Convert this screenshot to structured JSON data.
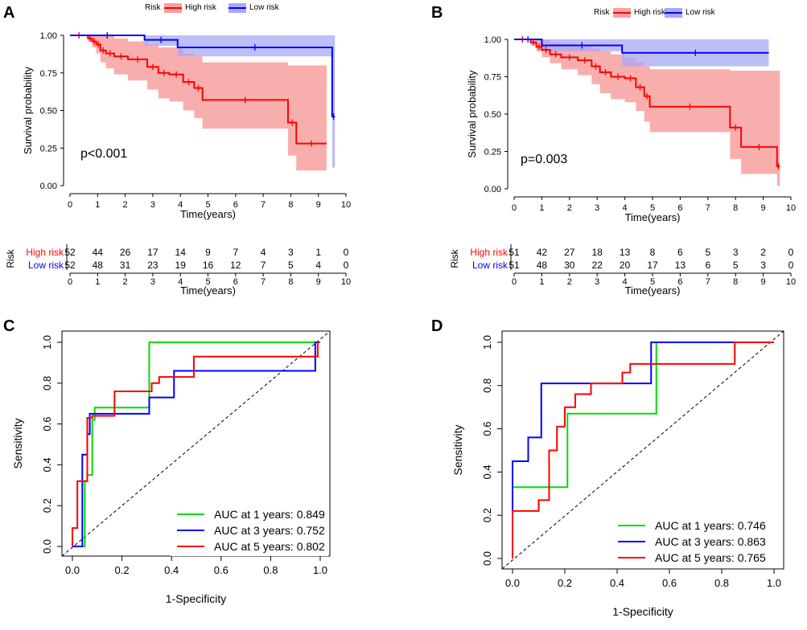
{
  "colors": {
    "high": "#ff0000",
    "low": "#0000ff",
    "high_fill": "#f8a0a0",
    "low_fill": "#a8a8f4",
    "green": "#00dd00",
    "axis": "#000000"
  },
  "panels": {
    "A": {
      "letter": "A",
      "pvalue": "p<0.001"
    },
    "B": {
      "letter": "B",
      "pvalue": "p=0.003"
    },
    "C": {
      "letter": "C"
    },
    "D": {
      "letter": "D"
    }
  },
  "km_common": {
    "legend_title": "Risk",
    "legend_high": "High risk",
    "legend_low": "Low risk",
    "xlabel": "Time(years)",
    "ylabel": "Survival probability",
    "risk_table_title": "Risk",
    "row_high": "High risk",
    "row_low": "Low risk",
    "xticks": [
      "0",
      "1",
      "2",
      "3",
      "4",
      "5",
      "6",
      "7",
      "8",
      "9",
      "10"
    ],
    "yticks": [
      "0.00",
      "0.25",
      "0.50",
      "0.75",
      "1.00"
    ]
  },
  "roc_common": {
    "xlabel": "1-Specificity",
    "ylabel": "Sensitivity",
    "xticks": [
      "0.0",
      "0.2",
      "0.4",
      "0.6",
      "0.8",
      "1.0"
    ],
    "yticks": [
      "0.0",
      "0.2",
      "0.4",
      "0.6",
      "0.8",
      "1.0"
    ]
  },
  "chart_data": [
    {
      "panel": "A",
      "type": "line",
      "subtype": "kaplan-meier",
      "title": "",
      "xlabel": "Time(years)",
      "ylabel": "Survival probability",
      "xlim": [
        0,
        10
      ],
      "ylim": [
        0,
        1
      ],
      "pvalue": "p<0.001",
      "series": [
        {
          "name": "High risk",
          "x": [
            0,
            0.65,
            0.8,
            0.95,
            1.1,
            1.3,
            1.6,
            2.1,
            2.8,
            3.2,
            3.6,
            4.1,
            4.5,
            4.8,
            7.9,
            8.2,
            9.3
          ],
          "y": [
            1.0,
            0.98,
            0.96,
            0.94,
            0.9,
            0.88,
            0.86,
            0.84,
            0.79,
            0.75,
            0.74,
            0.69,
            0.65,
            0.57,
            0.42,
            0.28,
            0.28
          ],
          "lower": [
            1.0,
            0.96,
            0.92,
            0.88,
            0.82,
            0.78,
            0.74,
            0.7,
            0.64,
            0.58,
            0.56,
            0.5,
            0.45,
            0.38,
            0.2,
            0.1,
            0.1
          ],
          "upper": [
            1.0,
            1.0,
            1.0,
            1.0,
            1.0,
            1.0,
            0.98,
            0.96,
            0.94,
            0.92,
            0.92,
            0.88,
            0.86,
            0.82,
            0.8,
            0.8,
            0.8
          ]
        },
        {
          "name": "Low risk",
          "x": [
            0,
            2.7,
            3.9,
            9.5,
            9.6
          ],
          "y": [
            1.0,
            0.97,
            0.92,
            0.46,
            0.46
          ],
          "lower": [
            1.0,
            0.93,
            0.86,
            0.12,
            0.12
          ],
          "upper": [
            1.0,
            1.0,
            1.0,
            1.0,
            1.0
          ]
        }
      ],
      "risk_table": {
        "times": [
          0,
          1,
          2,
          3,
          4,
          5,
          6,
          7,
          8,
          9,
          10
        ],
        "high": [
          "52",
          "44",
          "26",
          "17",
          "14",
          "9",
          "7",
          "4",
          "3",
          "1",
          "0"
        ],
        "low": [
          "52",
          "48",
          "31",
          "23",
          "19",
          "16",
          "12",
          "7",
          "5",
          "4",
          "0"
        ]
      }
    },
    {
      "panel": "B",
      "type": "line",
      "subtype": "kaplan-meier",
      "title": "",
      "xlabel": "Time(years)",
      "ylabel": "Survival probability",
      "xlim": [
        0,
        10
      ],
      "ylim": [
        0,
        1
      ],
      "pvalue": "p=0.003",
      "series": [
        {
          "name": "High risk",
          "x": [
            0,
            0.6,
            0.8,
            1.0,
            1.3,
            1.7,
            2.3,
            2.8,
            3.1,
            3.5,
            4.0,
            4.4,
            4.7,
            4.9,
            7.8,
            8.2,
            9.5,
            9.6
          ],
          "y": [
            1.0,
            0.98,
            0.95,
            0.93,
            0.9,
            0.88,
            0.86,
            0.82,
            0.78,
            0.75,
            0.74,
            0.68,
            0.62,
            0.55,
            0.41,
            0.28,
            0.15,
            0.15
          ],
          "lower": [
            1.0,
            0.96,
            0.92,
            0.88,
            0.84,
            0.8,
            0.76,
            0.7,
            0.64,
            0.6,
            0.58,
            0.52,
            0.45,
            0.38,
            0.2,
            0.1,
            0.02,
            0.02
          ],
          "upper": [
            1.0,
            1.0,
            1.0,
            1.0,
            0.98,
            0.97,
            0.96,
            0.94,
            0.92,
            0.9,
            0.88,
            0.85,
            0.82,
            0.8,
            0.79,
            0.79,
            0.79,
            0.79
          ]
        },
        {
          "name": "Low risk",
          "x": [
            0,
            1.0,
            3.9,
            9.2
          ],
          "y": [
            1.0,
            0.96,
            0.91,
            0.91
          ],
          "lower": [
            1.0,
            0.92,
            0.82,
            0.82
          ],
          "upper": [
            1.0,
            1.0,
            1.0,
            1.0
          ]
        }
      ],
      "risk_table": {
        "times": [
          0,
          1,
          2,
          3,
          4,
          5,
          6,
          7,
          8,
          9,
          10
        ],
        "high": [
          "51",
          "42",
          "27",
          "18",
          "13",
          "8",
          "6",
          "5",
          "3",
          "2",
          "0"
        ],
        "low": [
          "51",
          "48",
          "30",
          "22",
          "20",
          "17",
          "13",
          "6",
          "5",
          "3",
          "0"
        ]
      }
    },
    {
      "panel": "C",
      "type": "line",
      "subtype": "roc",
      "xlabel": "1-Specificity",
      "ylabel": "Sensitivity",
      "xlim": [
        0,
        1
      ],
      "ylim": [
        0,
        1
      ],
      "series": [
        {
          "name": "AUC at 1 years",
          "legend": "AUC at 1 years: 0.849",
          "auc": 0.849,
          "x": [
            0,
            0.05,
            0.05,
            0.06,
            0.06,
            0.08,
            0.08,
            0.09,
            0.09,
            0.31,
            0.31,
            1.0
          ],
          "y": [
            0,
            0,
            0.32,
            0.32,
            0.35,
            0.35,
            0.62,
            0.62,
            0.68,
            0.68,
            1.0,
            1.0
          ]
        },
        {
          "name": "AUC at 3 years",
          "legend": "AUC at 3 years: 0.752",
          "auc": 0.752,
          "x": [
            0,
            0.04,
            0.04,
            0.06,
            0.06,
            0.07,
            0.07,
            0.31,
            0.31,
            0.41,
            0.41,
            0.98,
            0.98,
            1.0
          ],
          "y": [
            0,
            0,
            0.45,
            0.45,
            0.55,
            0.55,
            0.65,
            0.65,
            0.73,
            0.73,
            0.86,
            0.86,
            1.0,
            1.0
          ]
        },
        {
          "name": "AUC at 5 years",
          "legend": "AUC at 5 years: 0.802",
          "auc": 0.802,
          "x": [
            0,
            0,
            0.02,
            0.02,
            0.06,
            0.06,
            0.08,
            0.08,
            0.17,
            0.17,
            0.32,
            0.32,
            0.35,
            0.35,
            0.49,
            0.49,
            0.99,
            0.99,
            1.0
          ],
          "y": [
            0,
            0.09,
            0.09,
            0.32,
            0.32,
            0.63,
            0.63,
            0.64,
            0.64,
            0.76,
            0.76,
            0.8,
            0.8,
            0.83,
            0.83,
            0.93,
            0.93,
            1.0,
            1.0
          ]
        }
      ]
    },
    {
      "panel": "D",
      "type": "line",
      "subtype": "roc",
      "xlabel": "1-Specificity",
      "ylabel": "Sensitivity",
      "xlim": [
        0,
        1
      ],
      "ylim": [
        0,
        1
      ],
      "series": [
        {
          "name": "AUC at 1 years",
          "legend": "AUC at 1 years: 0.746",
          "auc": 0.746,
          "x": [
            0,
            0,
            0.21,
            0.21,
            0.55,
            0.55,
            1.0
          ],
          "y": [
            0,
            0.33,
            0.33,
            0.67,
            0.67,
            1.0,
            1.0
          ]
        },
        {
          "name": "AUC at 3 years",
          "legend": "AUC at 3 years: 0.863",
          "auc": 0.863,
          "x": [
            0,
            0,
            0.06,
            0.06,
            0.11,
            0.11,
            0.53,
            0.53,
            0.85,
            0.85,
            1.0
          ],
          "y": [
            0,
            0.45,
            0.45,
            0.56,
            0.56,
            0.81,
            0.81,
            1.0,
            1.0,
            1.0,
            1.0
          ]
        },
        {
          "name": "AUC at 5 years",
          "legend": "AUC at 5 years: 0.765",
          "auc": 0.765,
          "x": [
            0,
            0,
            0.1,
            0.1,
            0.14,
            0.14,
            0.17,
            0.17,
            0.2,
            0.2,
            0.24,
            0.24,
            0.3,
            0.3,
            0.42,
            0.42,
            0.45,
            0.45,
            0.48,
            0.48,
            0.85,
            0.85,
            1.0
          ],
          "y": [
            0,
            0.22,
            0.22,
            0.27,
            0.27,
            0.5,
            0.5,
            0.61,
            0.61,
            0.7,
            0.7,
            0.76,
            0.76,
            0.81,
            0.81,
            0.86,
            0.86,
            0.9,
            0.9,
            0.9,
            0.9,
            1.0,
            1.0
          ]
        }
      ]
    }
  ]
}
